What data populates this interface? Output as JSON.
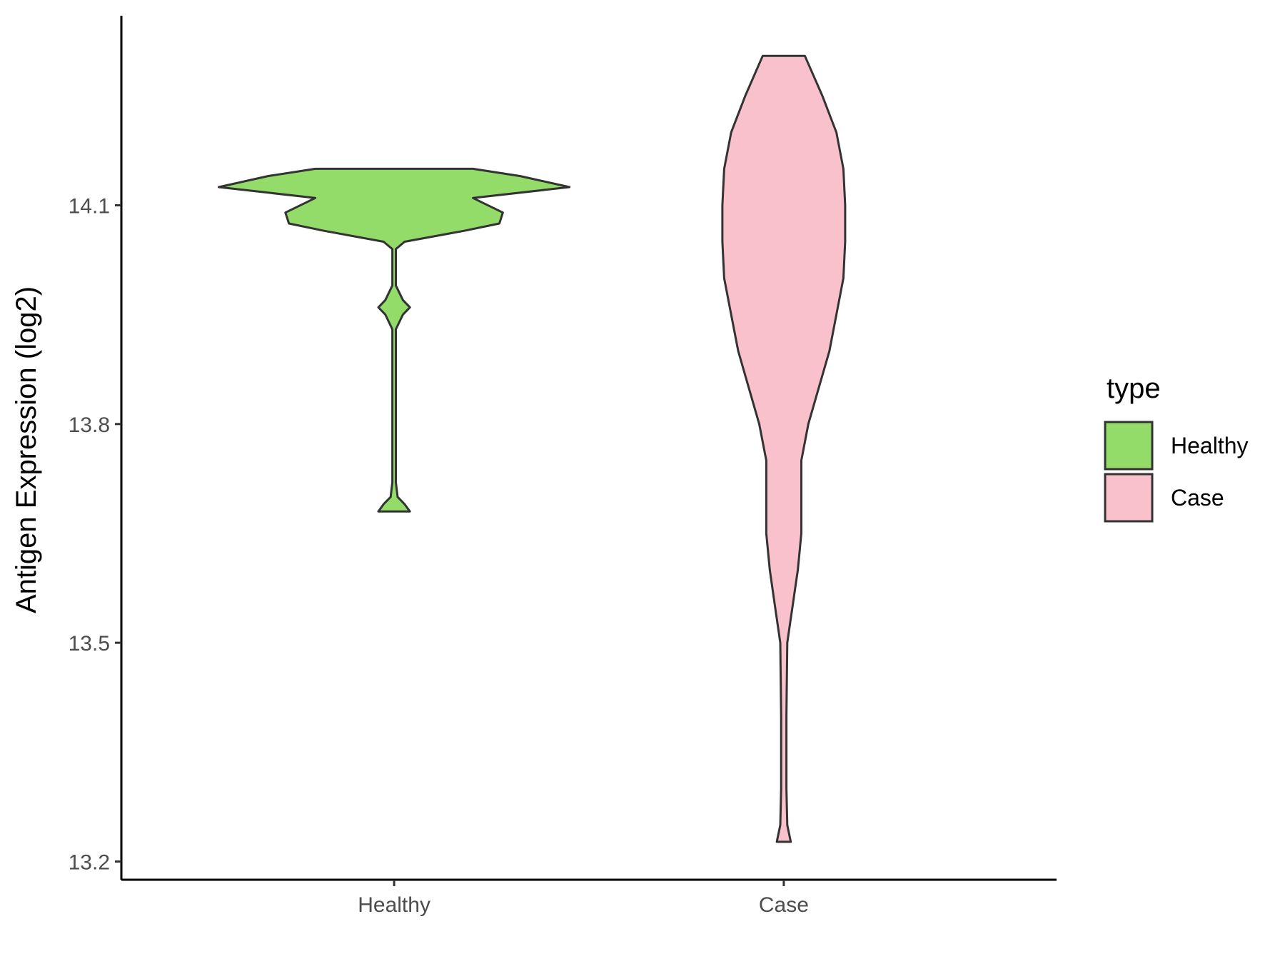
{
  "chart_data": {
    "type": "violin",
    "ylabel": "Antigen Expression (log2)",
    "xlabel": "",
    "categories": [
      "Healthy",
      "Case"
    ],
    "y_ticks": [
      13.2,
      13.5,
      13.8,
      14.1
    ],
    "y_tick_labels": [
      "13.2",
      "13.5",
      "13.8",
      "14.1"
    ],
    "ylim": [
      13.175,
      14.36
    ],
    "legend": {
      "title": "type",
      "position": "right",
      "entries": [
        {
          "label": "Healthy",
          "color": "#93dc69"
        },
        {
          "label": "Case",
          "color": "#f8c1cc"
        }
      ]
    },
    "grid": false,
    "series": [
      {
        "name": "Healthy",
        "color": "#93dc69",
        "y_min": 13.68,
        "y_max": 14.15,
        "profile": [
          [
            13.68,
            0.09
          ],
          [
            13.69,
            0.06
          ],
          [
            13.7,
            0.02
          ],
          [
            13.72,
            0.01
          ],
          [
            13.74,
            0.01
          ],
          [
            13.8,
            0.01
          ],
          [
            13.87,
            0.01
          ],
          [
            13.93,
            0.01
          ],
          [
            13.95,
            0.05
          ],
          [
            13.96,
            0.09
          ],
          [
            13.97,
            0.05
          ],
          [
            13.99,
            0.01
          ],
          [
            14.02,
            0.01
          ],
          [
            14.04,
            0.01
          ],
          [
            14.05,
            0.06
          ],
          [
            14.065,
            0.4
          ],
          [
            14.075,
            0.6
          ],
          [
            14.09,
            0.62
          ],
          [
            14.11,
            0.45
          ],
          [
            14.125,
            1.0
          ],
          [
            14.14,
            0.72
          ],
          [
            14.15,
            0.45
          ]
        ]
      },
      {
        "name": "Case",
        "color": "#f8c1cc",
        "y_min": 13.227,
        "y_max": 14.305,
        "profile": [
          [
            13.227,
            0.04
          ],
          [
            13.25,
            0.02
          ],
          [
            13.3,
            0.015
          ],
          [
            13.4,
            0.015
          ],
          [
            13.5,
            0.02
          ],
          [
            13.55,
            0.05
          ],
          [
            13.6,
            0.08
          ],
          [
            13.65,
            0.1
          ],
          [
            13.7,
            0.1
          ],
          [
            13.75,
            0.1
          ],
          [
            13.8,
            0.14
          ],
          [
            13.85,
            0.2
          ],
          [
            13.9,
            0.26
          ],
          [
            13.95,
            0.3
          ],
          [
            14.0,
            0.34
          ],
          [
            14.05,
            0.35
          ],
          [
            14.1,
            0.35
          ],
          [
            14.15,
            0.34
          ],
          [
            14.2,
            0.3
          ],
          [
            14.25,
            0.22
          ],
          [
            14.305,
            0.12
          ]
        ]
      }
    ]
  }
}
